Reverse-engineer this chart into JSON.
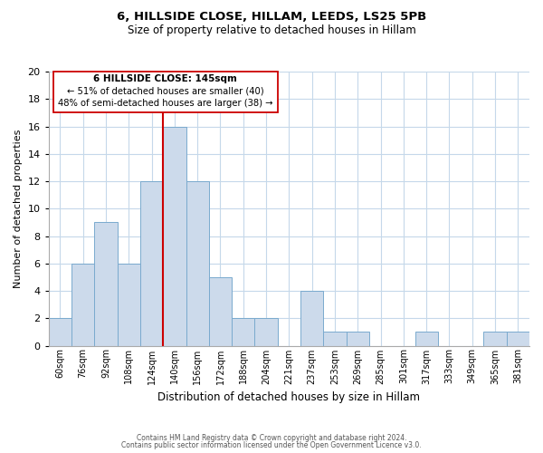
{
  "title_line1": "6, HILLSIDE CLOSE, HILLAM, LEEDS, LS25 5PB",
  "title_line2": "Size of property relative to detached houses in Hillam",
  "xlabel": "Distribution of detached houses by size in Hillam",
  "ylabel": "Number of detached properties",
  "bar_labels": [
    "60sqm",
    "76sqm",
    "92sqm",
    "108sqm",
    "124sqm",
    "140sqm",
    "156sqm",
    "172sqm",
    "188sqm",
    "204sqm",
    "221sqm",
    "237sqm",
    "253sqm",
    "269sqm",
    "285sqm",
    "301sqm",
    "317sqm",
    "333sqm",
    "349sqm",
    "365sqm",
    "381sqm"
  ],
  "bar_values": [
    2,
    6,
    9,
    6,
    12,
    16,
    12,
    5,
    2,
    2,
    0,
    4,
    1,
    1,
    0,
    0,
    1,
    0,
    0,
    1,
    1
  ],
  "bar_color": "#ccdaeb",
  "bar_edge_color": "#7aaace",
  "vline_color": "#cc0000",
  "annotation_line1": "6 HILLSIDE CLOSE: 145sqm",
  "annotation_line2": "← 51% of detached houses are smaller (40)",
  "annotation_line3": "48% of semi-detached houses are larger (38) →",
  "ylim": [
    0,
    20
  ],
  "yticks": [
    0,
    2,
    4,
    6,
    8,
    10,
    12,
    14,
    16,
    18,
    20
  ],
  "footer_line1": "Contains HM Land Registry data © Crown copyright and database right 2024.",
  "footer_line2": "Contains public sector information licensed under the Open Government Licence v3.0.",
  "bg_color": "#ffffff",
  "grid_color": "#c5d8ea"
}
